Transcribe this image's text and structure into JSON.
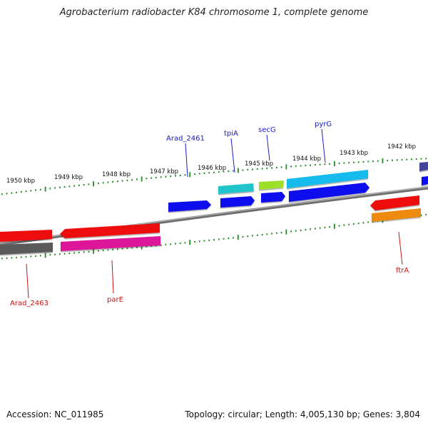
{
  "title": "Agrobacterium radiobacter K84 chromosome 1, complete genome",
  "footer": {
    "accession": "Accession: NC_011985",
    "summary": "Topology: circular; Length: 4,005,130 bp; Genes: 3,804"
  },
  "ticks": [
    "1950 kbp",
    "1949 kbp",
    "1948 kbp",
    "1947 kbp",
    "1946 kbp",
    "1945 kbp",
    "1944 kbp",
    "1943 kbp",
    "1942 kbp"
  ],
  "gene_labels": {
    "top": [
      "Arad_2461",
      "tpiA",
      "secG",
      "pyrG"
    ],
    "bottom": [
      "Arad_2463",
      "parE",
      "ftrA"
    ]
  },
  "colors": {
    "label_top": "#1a1acc",
    "label_bottom": "#cc1111",
    "backbone": "#7a7a7a",
    "tick": "#228b22",
    "blue": "#0000ee",
    "cyan": "#22bbcc",
    "sky": "#11bbee",
    "lime": "#99dd22",
    "red": "#ee0000",
    "magenta": "#dd1199",
    "orange": "#ee8800",
    "gray": "#555555",
    "navy": "#444499"
  }
}
